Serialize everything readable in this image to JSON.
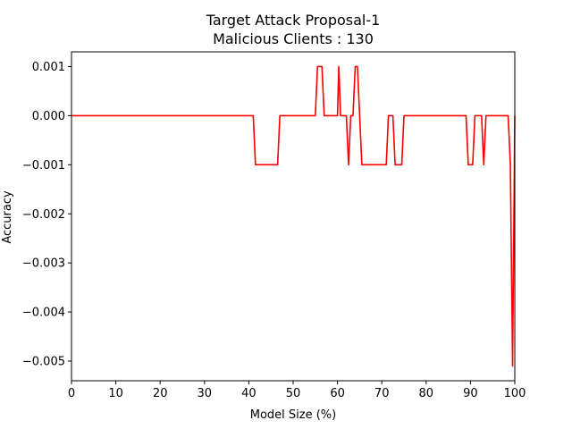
{
  "chart_data": {
    "type": "line",
    "title": "Target Attack Proposal-1",
    "subtitle": "Malicious Clients : 130",
    "xlabel": "Model Size (%)",
    "ylabel": "Accuracy",
    "xlim": [
      0,
      100
    ],
    "ylim": [
      -0.0054,
      0.0013
    ],
    "xticks": [
      0,
      10,
      20,
      30,
      40,
      50,
      60,
      70,
      80,
      90,
      100
    ],
    "yticks": [
      0.001,
      0.0,
      -0.001,
      -0.002,
      -0.003,
      -0.004,
      -0.005
    ],
    "ytick_labels": [
      "0.001",
      "0.000",
      "−0.001",
      "−0.002",
      "−0.003",
      "−0.004",
      "−0.005"
    ],
    "grid": false,
    "series": [
      {
        "color": "#ff0000",
        "x": [
          0,
          41,
          41.5,
          46.5,
          47,
          55,
          55.5,
          56.5,
          57,
          60,
          60.3,
          60.7,
          61,
          62,
          62.5,
          63,
          63.5,
          64,
          64.5,
          65,
          65.5,
          71,
          71.5,
          72.5,
          73,
          74.5,
          75,
          89,
          89.5,
          90.5,
          91,
          92.5,
          93,
          93.5,
          98.5,
          99,
          99.5,
          100
        ],
        "y": [
          0,
          0,
          -0.001,
          -0.001,
          0,
          0,
          0.001,
          0.001,
          0,
          0,
          0.001,
          0,
          0,
          0,
          -0.001,
          0,
          0,
          0.001,
          0.001,
          0,
          -0.001,
          -0.001,
          0,
          0,
          -0.001,
          -0.001,
          0,
          0,
          -0.001,
          -0.001,
          0,
          0,
          -0.001,
          0,
          0,
          -0.001,
          -0.0051,
          0
        ]
      }
    ]
  }
}
